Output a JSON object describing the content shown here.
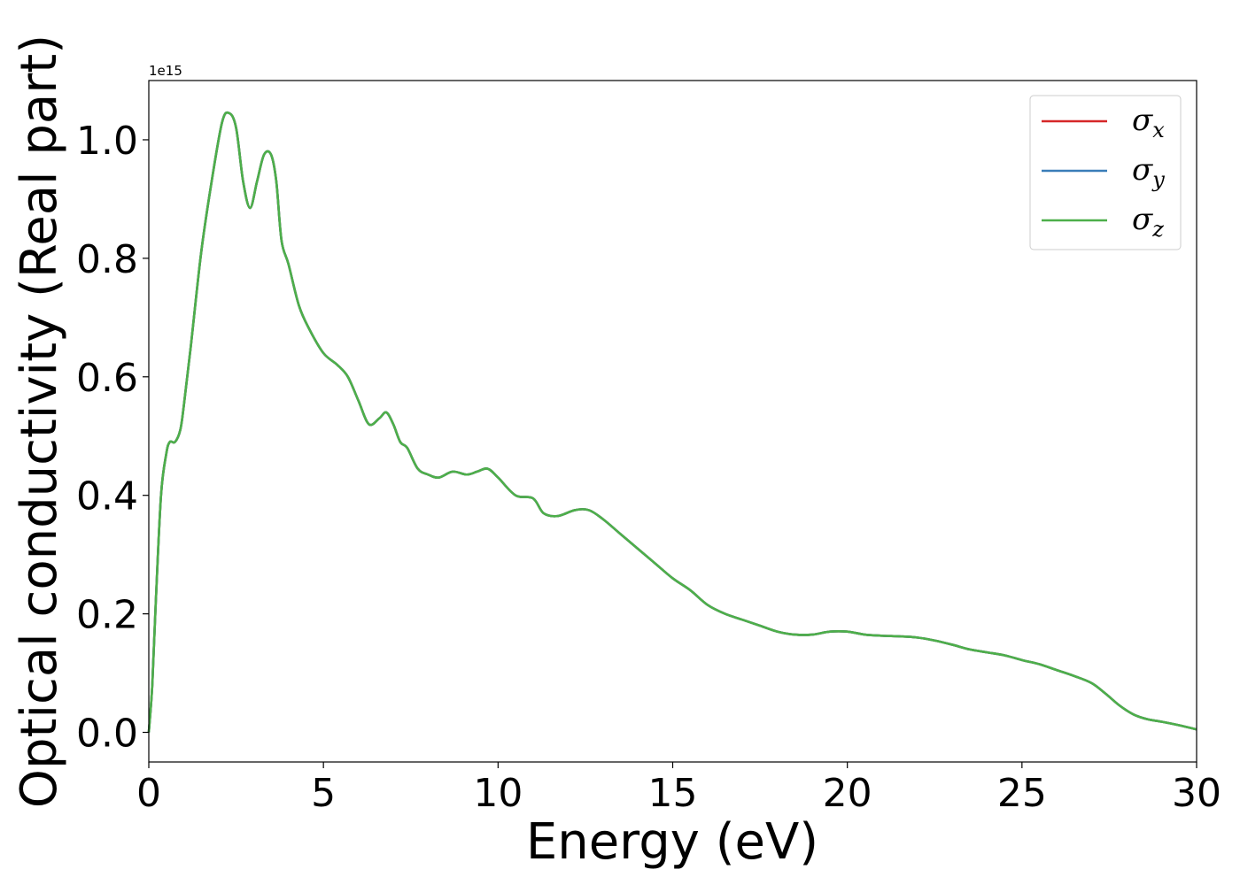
{
  "chart_data": {
    "type": "line",
    "xlabel": "Energy (eV)",
    "ylabel": "Optical conductivity (Real part)",
    "y_offset_text": "1e15",
    "xlim": [
      0,
      30
    ],
    "ylim": [
      -0.05,
      1.1
    ],
    "x_ticks": [
      0,
      5,
      10,
      15,
      20,
      25,
      30
    ],
    "x_tick_labels": [
      "0",
      "5",
      "10",
      "15",
      "20",
      "25",
      "30"
    ],
    "y_ticks": [
      0.0,
      0.2,
      0.4,
      0.6,
      0.8,
      1.0
    ],
    "y_tick_labels": [
      "0.0",
      "0.2",
      "0.4",
      "0.6",
      "0.8",
      "1.0"
    ],
    "grid": false,
    "legend_position": "top-right",
    "series": [
      {
        "symbol": "σ",
        "subscript": "x",
        "color": "#d62728"
      },
      {
        "symbol": "σ",
        "subscript": "y",
        "color": "#3a7db8"
      },
      {
        "symbol": "σ",
        "subscript": "z",
        "color": "#4daf4a"
      }
    ],
    "x": [
      0,
      0.1,
      0.2,
      0.35,
      0.5,
      0.6,
      0.75,
      0.9,
      1.0,
      1.2,
      1.5,
      1.8,
      2.1,
      2.3,
      2.5,
      2.7,
      2.9,
      3.1,
      3.3,
      3.5,
      3.65,
      3.8,
      4.0,
      4.3,
      4.6,
      5.0,
      5.4,
      5.7,
      6.0,
      6.3,
      6.6,
      6.8,
      7.0,
      7.2,
      7.4,
      7.7,
      8.0,
      8.3,
      8.7,
      9.1,
      9.4,
      9.7,
      10.0,
      10.5,
      11.0,
      11.3,
      11.7,
      12.2,
      12.6,
      13.0,
      13.5,
      14.0,
      14.5,
      15.0,
      15.5,
      16.0,
      16.5,
      17.0,
      17.5,
      18.0,
      18.5,
      19.0,
      19.5,
      20.0,
      20.5,
      21.0,
      21.5,
      22.0,
      22.5,
      23.0,
      23.5,
      24.0,
      24.5,
      25.0,
      25.5,
      26.0,
      26.5,
      27.0,
      27.4,
      27.8,
      28.2,
      28.6,
      29.0,
      29.5,
      30.0
    ],
    "values": [
      0.0,
      0.08,
      0.22,
      0.4,
      0.47,
      0.49,
      0.49,
      0.51,
      0.55,
      0.65,
      0.81,
      0.93,
      1.03,
      1.045,
      1.02,
      0.93,
      0.885,
      0.93,
      0.975,
      0.975,
      0.93,
      0.83,
      0.79,
      0.72,
      0.68,
      0.64,
      0.62,
      0.6,
      0.56,
      0.52,
      0.53,
      0.54,
      0.52,
      0.49,
      0.48,
      0.445,
      0.435,
      0.43,
      0.44,
      0.435,
      0.44,
      0.445,
      0.43,
      0.4,
      0.395,
      0.37,
      0.365,
      0.375,
      0.375,
      0.36,
      0.335,
      0.31,
      0.285,
      0.26,
      0.24,
      0.215,
      0.2,
      0.19,
      0.18,
      0.17,
      0.165,
      0.165,
      0.17,
      0.17,
      0.165,
      0.163,
      0.162,
      0.16,
      0.155,
      0.148,
      0.14,
      0.135,
      0.13,
      0.122,
      0.115,
      0.105,
      0.095,
      0.083,
      0.065,
      0.045,
      0.03,
      0.022,
      0.018,
      0.012,
      0.005
    ]
  }
}
